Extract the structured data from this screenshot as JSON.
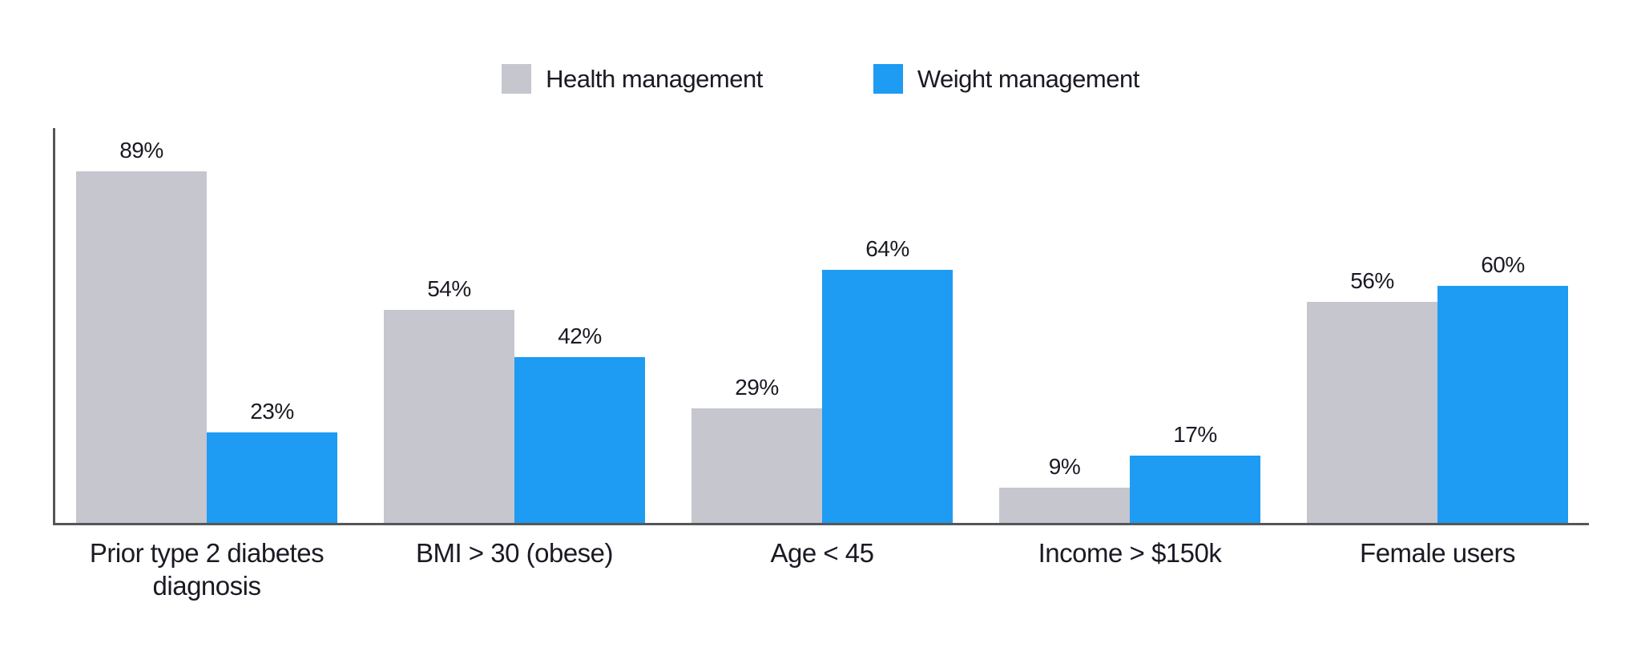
{
  "chart_data": {
    "type": "bar",
    "title": "",
    "xlabel": "",
    "ylabel": "",
    "categories": [
      "Prior type 2 diabetes\ndiagnosis",
      "BMI > 30 (obese)",
      "Age < 45",
      "Income > $150k",
      "Female users"
    ],
    "series": [
      {
        "name": "Health management",
        "color": "#C5C6CE",
        "values": [
          89,
          54,
          29,
          9,
          56
        ]
      },
      {
        "name": "Weight management",
        "color": "#1E9BF2",
        "values": [
          23,
          42,
          64,
          17,
          60
        ]
      }
    ],
    "value_suffix": "%",
    "ylim": [
      0,
      100
    ],
    "grid": false,
    "legend_position": "top-center",
    "data_labels": true
  },
  "style": {
    "axis_color": "#55565A",
    "text_color": "#1A1A24",
    "background": "#FFFFFF"
  }
}
